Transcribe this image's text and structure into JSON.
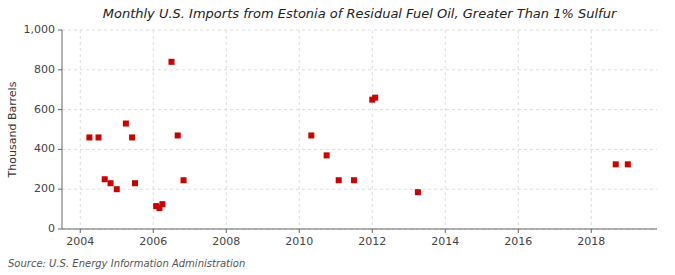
{
  "chart_data": {
    "type": "scatter",
    "title": "Monthly U.S. Imports from Estonia of Residual Fuel Oil, Greater Than 1% Sulfur",
    "y_label": "Thousand Barrels",
    "annotations": [
      "Source: U.S. Energy Information Administration"
    ],
    "x": [
      2004.25,
      2004.5,
      2004.67,
      2004.83,
      2005.0,
      2005.25,
      2005.42,
      2005.5,
      2006.08,
      2006.17,
      2006.25,
      2006.5,
      2006.67,
      2006.83,
      2010.33,
      2010.75,
      2011.08,
      2011.5,
      2012.0,
      2012.08,
      2013.25,
      2018.67,
      2019.0
    ],
    "values": [
      460,
      460,
      250,
      230,
      200,
      530,
      460,
      230,
      115,
      105,
      125,
      840,
      470,
      245,
      470,
      370,
      245,
      245,
      650,
      660,
      185,
      325,
      325
    ],
    "color": "#cc0000",
    "marker": "square",
    "xlim": [
      2003.5,
      2019.8
    ],
    "ylim": [
      0,
      1000
    ],
    "xticks": [
      2004,
      2006,
      2008,
      2010,
      2012,
      2014,
      2016,
      2018
    ],
    "yticks": [
      0,
      200,
      400,
      600,
      800,
      {
        "value": 1000,
        "label": "1,000"
      }
    ],
    "grid": true
  }
}
